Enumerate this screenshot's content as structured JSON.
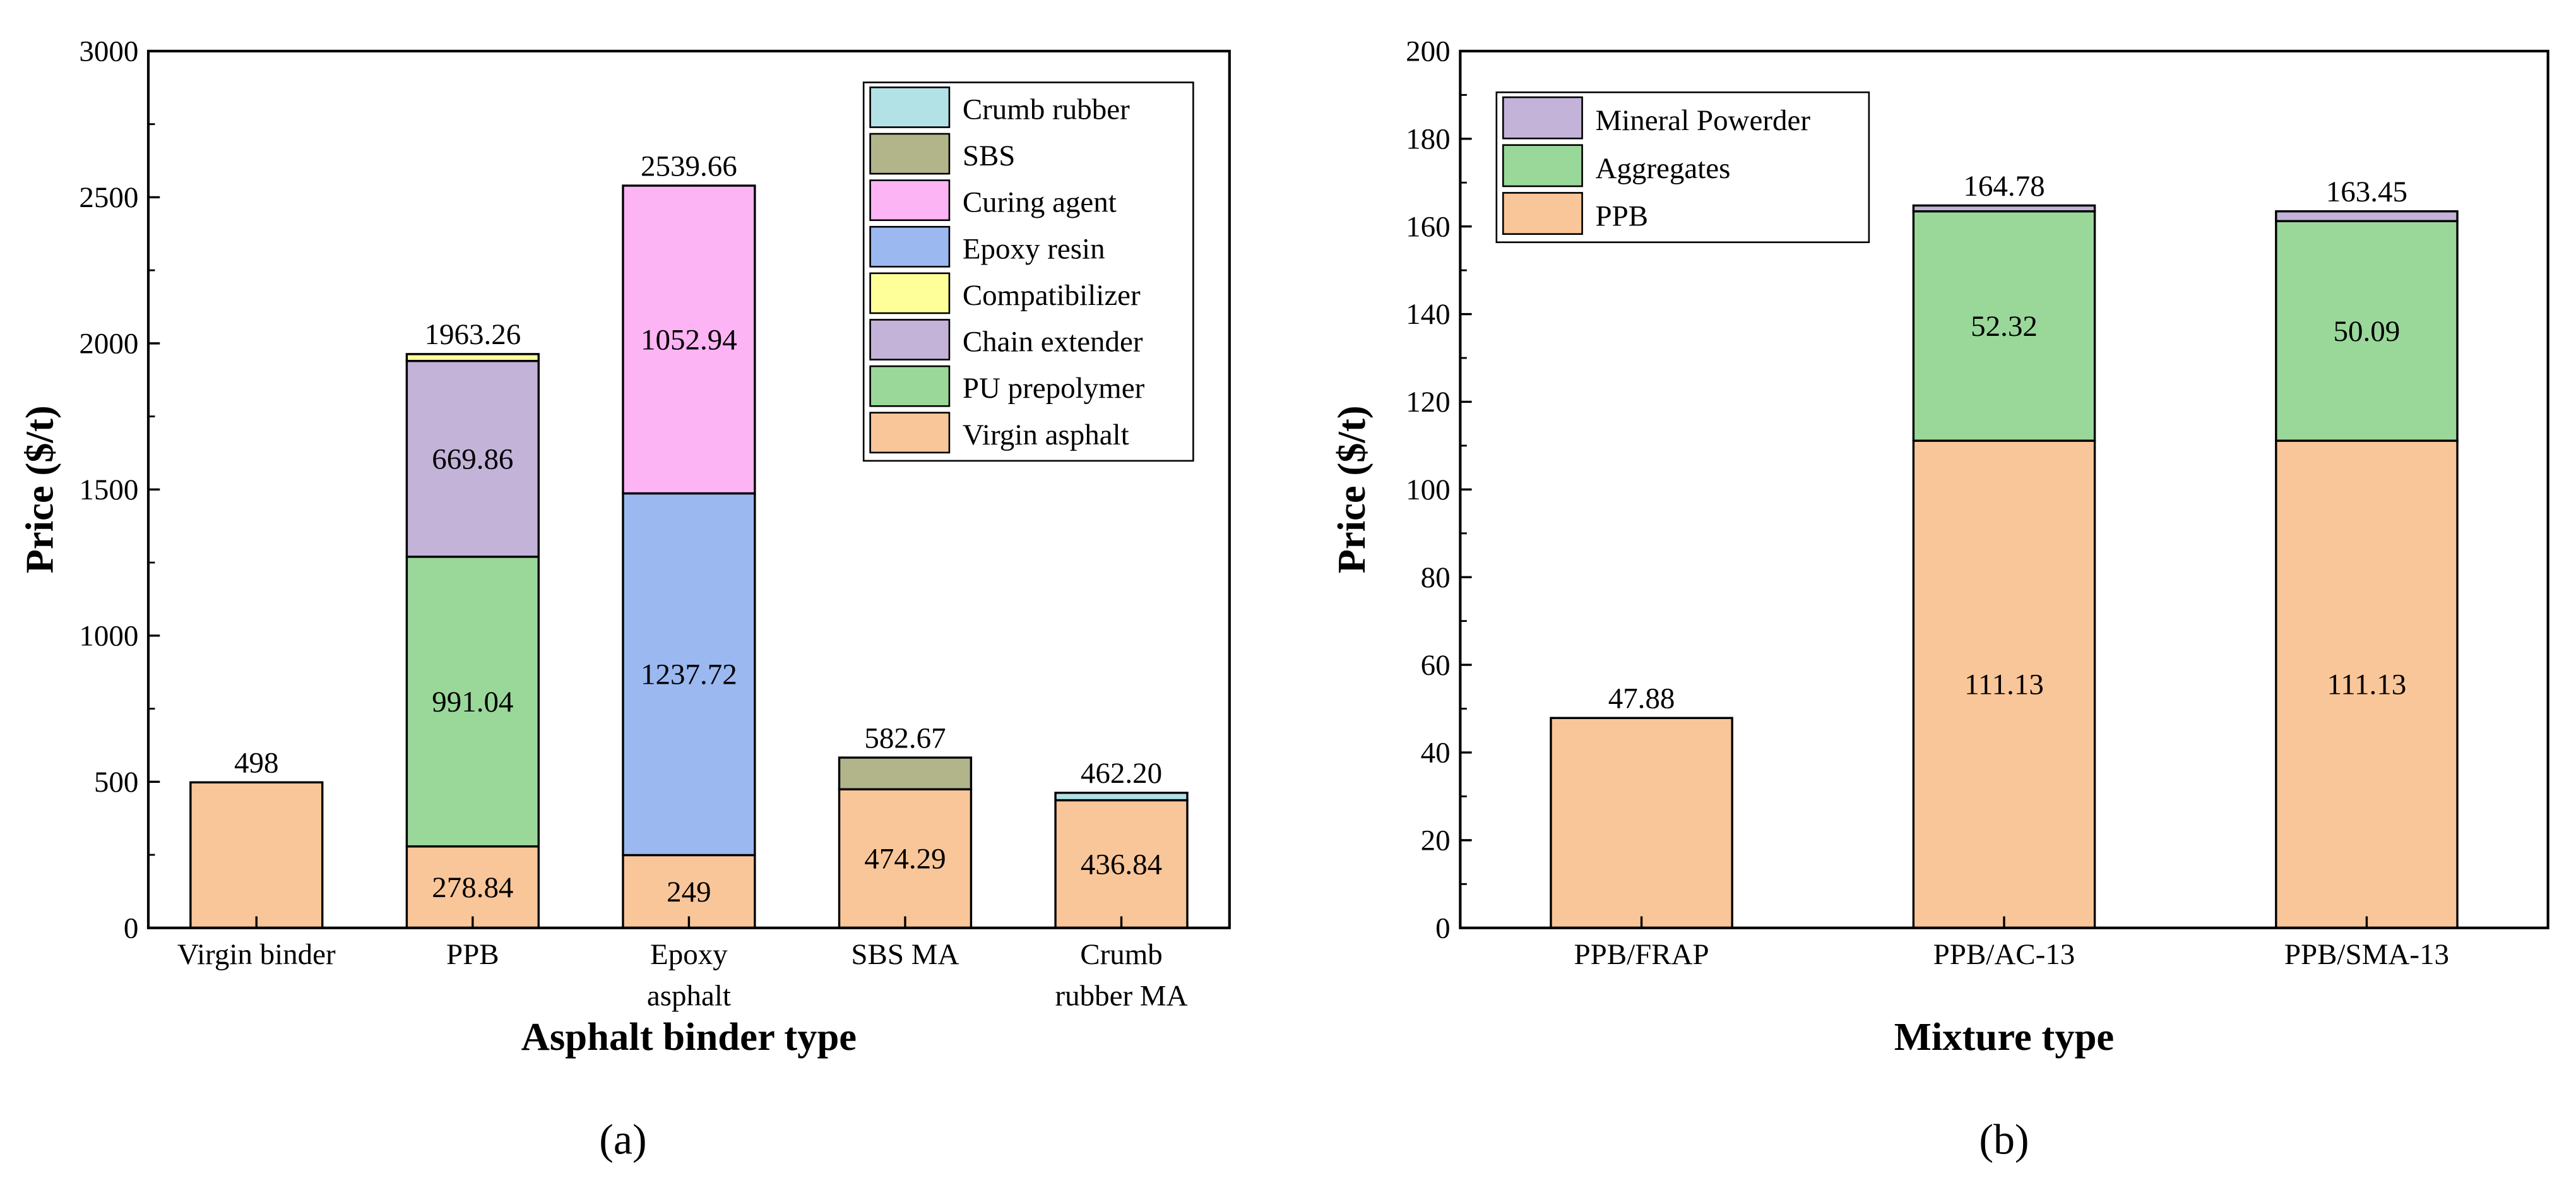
{
  "chart_data": [
    {
      "type": "bar",
      "stacked": true,
      "panel_label": "(a)",
      "xlabel": "Asphalt binder type",
      "ylabel": "Price ($/t)",
      "ylim": [
        0,
        3000
      ],
      "yticks": [
        0,
        500,
        1000,
        1500,
        2000,
        2500,
        3000
      ],
      "categories": [
        [
          "Virgin binder"
        ],
        [
          "PPB"
        ],
        [
          "Epoxy",
          "asphalt"
        ],
        [
          "SBS MA"
        ],
        [
          "Crumb",
          "rubber MA"
        ]
      ],
      "totals": [
        "498",
        "1963.26",
        "2539.66",
        "582.67",
        "462.20"
      ],
      "legend_position": "top-right",
      "series": [
        {
          "name": "Virgin asphalt",
          "color": "#F9C69A",
          "values": [
            498,
            278.84,
            249,
            474.29,
            436.84
          ],
          "labels": [
            null,
            "278.84",
            "249",
            "474.29",
            "436.84"
          ]
        },
        {
          "name": "PU prepolymer",
          "color": "#9AD89A",
          "values": [
            0,
            991.04,
            0,
            0,
            0
          ],
          "labels": [
            null,
            "991.04",
            null,
            null,
            null
          ]
        },
        {
          "name": "Chain extender",
          "color": "#C3B3D9",
          "values": [
            0,
            669.86,
            0,
            0,
            0
          ],
          "labels": [
            null,
            "669.86",
            null,
            null,
            null
          ]
        },
        {
          "name": "Compatibilizer",
          "color": "#FFFF99",
          "values": [
            0,
            23.52,
            0,
            0,
            0
          ],
          "labels": [
            null,
            null,
            null,
            null,
            null
          ]
        },
        {
          "name": "Epoxy resin",
          "color": "#9BB8F0",
          "values": [
            0,
            0,
            1237.72,
            0,
            0
          ],
          "labels": [
            null,
            null,
            "1237.72",
            null,
            null
          ]
        },
        {
          "name": "Curing agent",
          "color": "#FDB4F4",
          "values": [
            0,
            0,
            1052.94,
            0,
            0
          ],
          "labels": [
            null,
            null,
            "1052.94",
            null,
            null
          ]
        },
        {
          "name": "SBS",
          "color": "#B2B48A",
          "values": [
            0,
            0,
            0,
            108.38,
            0
          ],
          "labels": [
            null,
            null,
            null,
            null,
            null
          ]
        },
        {
          "name": "Crumb rubber",
          "color": "#B2E2E6",
          "values": [
            0,
            0,
            0,
            0,
            25.36
          ],
          "labels": [
            null,
            null,
            null,
            null,
            null
          ]
        }
      ],
      "legend_order": [
        "Crumb rubber",
        "SBS",
        "Curing agent",
        "Epoxy resin",
        "Compatibilizer",
        "Chain extender",
        "PU prepolymer",
        "Virgin asphalt"
      ]
    },
    {
      "type": "bar",
      "stacked": true,
      "panel_label": "(b)",
      "xlabel": "Mixture type",
      "ylabel": "Price ($/t)",
      "ylim": [
        0,
        200
      ],
      "yticks": [
        0,
        20,
        40,
        60,
        80,
        100,
        120,
        140,
        160,
        180,
        200
      ],
      "categories": [
        [
          "PPB/FRAP"
        ],
        [
          "PPB/AC-13"
        ],
        [
          "PPB/SMA-13"
        ]
      ],
      "totals": [
        "47.88",
        "164.78",
        "163.45"
      ],
      "legend_position": "top-left",
      "series": [
        {
          "name": "PPB",
          "color": "#F9C69A",
          "values": [
            47.88,
            111.13,
            111.13
          ],
          "labels": [
            null,
            "111.13",
            "111.13"
          ]
        },
        {
          "name": "Aggregates",
          "color": "#9AD89A",
          "values": [
            0,
            52.32,
            50.09
          ],
          "labels": [
            null,
            "52.32",
            "50.09"
          ]
        },
        {
          "name": "Mineral Powerder",
          "color": "#C3B3D9",
          "values": [
            0,
            1.33,
            2.23
          ],
          "labels": [
            null,
            null,
            null
          ]
        }
      ],
      "legend_order": [
        "Mineral Powerder",
        "Aggregates",
        "PPB"
      ]
    }
  ]
}
